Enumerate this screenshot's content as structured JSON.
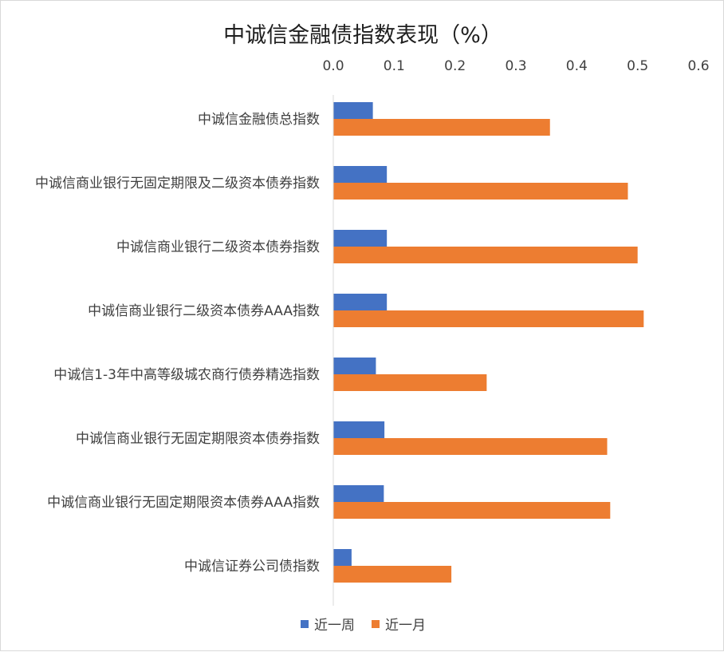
{
  "chart_data": {
    "type": "bar",
    "orientation": "horizontal",
    "title": "中诚信金融债指数表现（%）",
    "categories": [
      "中诚信金融债总指数",
      "中诚信商业银行无固定期限及二级资本债券指数",
      "中诚信商业银行二级资本债券指数",
      "中诚信商业银行二级资本债券AAA指数",
      "中诚信1-3年中高等级城农商行债券精选指数",
      "中诚信商业银行无固定期限资本债券指数",
      "中诚信商业银行无固定期限资本债券AAA指数",
      "中诚信证券公司债指数"
    ],
    "series": [
      {
        "name": "近一周",
        "color": "#4472c4",
        "values": [
          0.065,
          0.088,
          0.088,
          0.088,
          0.07,
          0.084,
          0.083,
          0.03
        ]
      },
      {
        "name": "近一月",
        "color": "#ed7d31",
        "values": [
          0.356,
          0.484,
          0.5,
          0.51,
          0.252,
          0.45,
          0.455,
          0.194
        ]
      }
    ],
    "xlim": [
      0,
      0.6
    ],
    "xticks": [
      "0.0",
      "0.1",
      "0.2",
      "0.3",
      "0.4",
      "0.5",
      "0.6"
    ],
    "xaxis_position": "top",
    "grid": false,
    "legend_position": "bottom"
  }
}
